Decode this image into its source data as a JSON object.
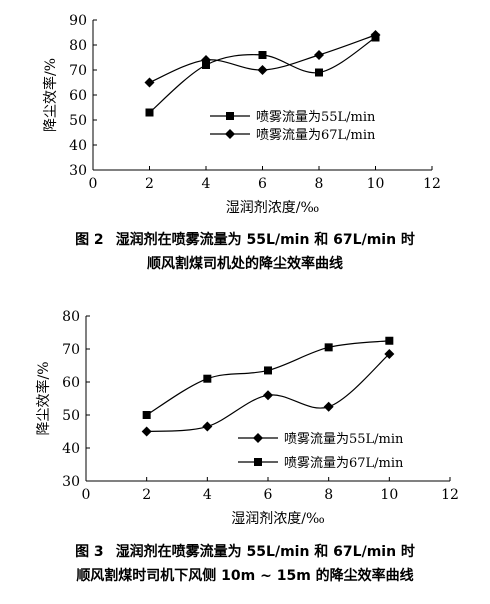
{
  "chart_data": [
    {
      "type": "line",
      "x": [
        2,
        4,
        6,
        8,
        10
      ],
      "series": [
        {
          "name": "喷雾流量为55L/min",
          "marker": "square",
          "values": [
            53,
            72,
            76,
            69,
            83
          ]
        },
        {
          "name": "喷雾流量为67L/min",
          "marker": "diamond",
          "values": [
            65,
            74,
            70,
            76,
            84
          ]
        }
      ],
      "xlabel": "湿润剂浓度/‰",
      "ylabel": "降尘效率/%",
      "xlim": [
        0,
        12
      ],
      "ylim": [
        30,
        90
      ],
      "xticks": [
        0,
        2,
        4,
        6,
        8,
        10,
        12
      ],
      "yticks": [
        30,
        40,
        50,
        60,
        70,
        80,
        90
      ],
      "legend_position": "lower-right",
      "grid": false
    },
    {
      "type": "line",
      "x": [
        2,
        4,
        6,
        8,
        10
      ],
      "series": [
        {
          "name": "喷雾流量为55L/min",
          "marker": "diamond",
          "values": [
            45,
            46.5,
            56,
            52.5,
            68.5
          ]
        },
        {
          "name": "喷雾流量为67L/min",
          "marker": "square",
          "values": [
            50,
            61,
            63.5,
            70.5,
            72.5
          ]
        }
      ],
      "xlabel": "湿润剂浓度/‰",
      "ylabel": "降尘效率/%",
      "xlim": [
        0,
        12
      ],
      "ylim": [
        30,
        80
      ],
      "xticks": [
        0,
        2,
        4,
        6,
        8,
        10,
        12
      ],
      "yticks": [
        30,
        40,
        50,
        60,
        70,
        80
      ],
      "legend_position": "lower-right",
      "grid": false
    }
  ],
  "captions": [
    {
      "number": "图 2",
      "line1": "湿润剂在喷雾流量为 55L/min 和 67L/min 时",
      "line2": "顺风割煤司机处的降尘效率曲线"
    },
    {
      "number": "图 3",
      "line1": "湿润剂在喷雾流量为 55L/min 和 67L/min 时",
      "line2": "顺风割煤时司机下风侧 10m ~ 15m 的降尘效率曲线"
    }
  ]
}
